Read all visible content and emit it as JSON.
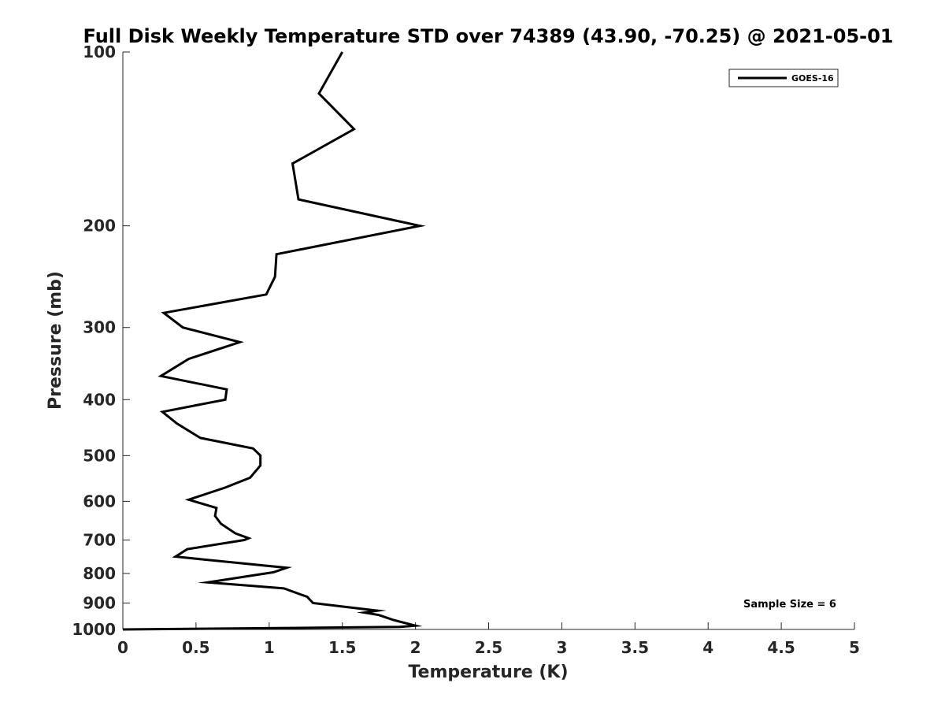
{
  "chart_data": {
    "type": "line",
    "title": "Full Disk Weekly Temperature STD over 74389 (43.90, -70.25) @ 2021-05-01",
    "xlabel": "Temperature (K)",
    "ylabel": "Pressure (mb)",
    "xlim": [
      0,
      5
    ],
    "ylim": [
      100,
      1000
    ],
    "y_scale": "log",
    "y_reversed": true,
    "x_ticks": [
      "0",
      "0.5",
      "1",
      "1.5",
      "2",
      "2.5",
      "3",
      "3.5",
      "4",
      "4.5",
      "5"
    ],
    "y_ticks": [
      "100",
      "200",
      "300",
      "400",
      "500",
      "600",
      "700",
      "800",
      "900",
      "1000"
    ],
    "grid": false,
    "legend_position": "top-right",
    "annotation": "Sample Size = 6",
    "series": [
      {
        "name": "GOES-16",
        "color": "#000000",
        "points": [
          [
            1.5,
            100
          ],
          [
            1.34,
            118
          ],
          [
            1.58,
            136
          ],
          [
            1.16,
            156
          ],
          [
            1.2,
            180
          ],
          [
            2.03,
            200
          ],
          [
            1.05,
            224
          ],
          [
            1.04,
            245
          ],
          [
            0.98,
            263
          ],
          [
            0.28,
            283
          ],
          [
            0.41,
            300
          ],
          [
            0.8,
            318
          ],
          [
            0.45,
            340
          ],
          [
            0.26,
            364
          ],
          [
            0.71,
            384
          ],
          [
            0.7,
            400
          ],
          [
            0.27,
            420
          ],
          [
            0.37,
            440
          ],
          [
            0.53,
            466
          ],
          [
            0.89,
            486
          ],
          [
            0.94,
            500
          ],
          [
            0.94,
            520
          ],
          [
            0.87,
            546
          ],
          [
            0.7,
            568
          ],
          [
            0.45,
            596
          ],
          [
            0.64,
            616
          ],
          [
            0.63,
            636
          ],
          [
            0.67,
            656
          ],
          [
            0.77,
            682
          ],
          [
            0.86,
            695
          ],
          [
            0.83,
            700
          ],
          [
            0.44,
            726
          ],
          [
            0.36,
            748
          ],
          [
            1.12,
            782
          ],
          [
            1.03,
            796
          ],
          [
            0.58,
            829
          ],
          [
            1.1,
            849
          ],
          [
            1.26,
            878
          ],
          [
            1.3,
            900
          ],
          [
            1.74,
            928
          ],
          [
            1.65,
            935
          ],
          [
            1.75,
            944
          ],
          [
            1.85,
            963
          ],
          [
            2.0,
            985
          ],
          [
            1.89,
            990
          ],
          [
            0.0,
            1000
          ]
        ]
      }
    ]
  }
}
